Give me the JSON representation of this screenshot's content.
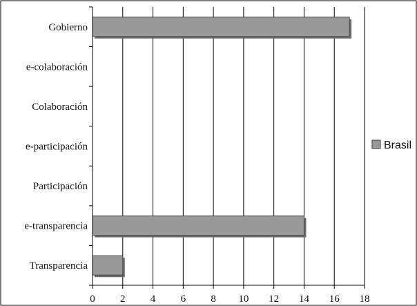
{
  "chart_data": {
    "type": "bar",
    "orientation": "horizontal",
    "title": "",
    "xlabel": "",
    "ylabel": "",
    "categories": [
      "Gobierno",
      "e-colaboración",
      "Colaboración",
      "e-participación",
      "Participación",
      "e-transparencia",
      "Transparencia"
    ],
    "series": [
      {
        "name": "Brasil",
        "values": [
          17,
          0,
          0,
          0,
          0,
          14,
          2
        ],
        "color": "#999999"
      }
    ],
    "xlim": [
      0,
      18
    ],
    "xticks": [
      0,
      2,
      4,
      6,
      8,
      10,
      12,
      14,
      16,
      18
    ],
    "xtick_labels": [
      "0",
      "2",
      "4",
      "6",
      "8",
      "10",
      "12",
      "14",
      "16",
      "18"
    ],
    "grid": "vertical",
    "legend_position": "right",
    "colors": {
      "bar_fill": "#999999",
      "bar_shadow": "#6e6e6e",
      "bar_stroke": "#444444",
      "grid": "#000000"
    }
  }
}
